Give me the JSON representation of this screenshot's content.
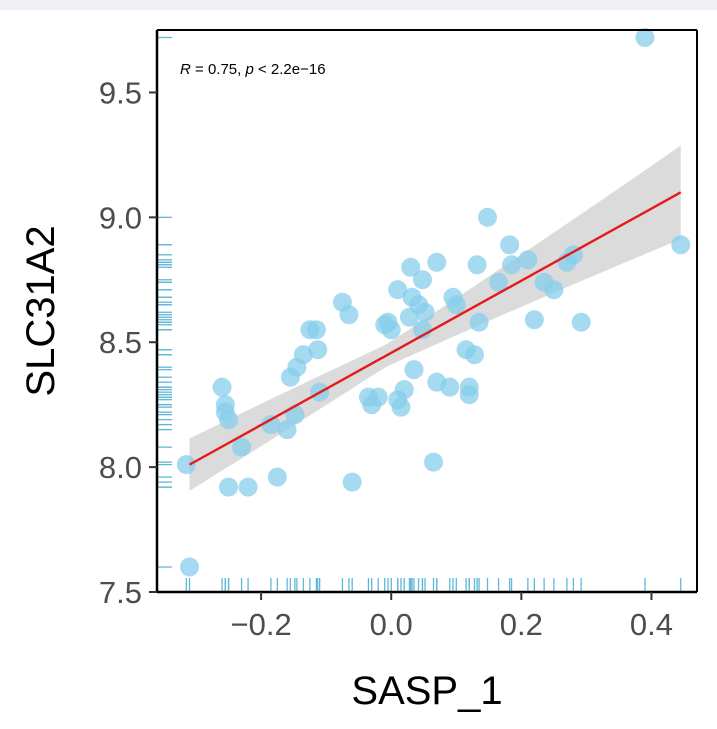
{
  "chart_data": {
    "type": "scatter",
    "xlabel": "SASP_1",
    "ylabel": "SLC31A2",
    "xlim": [
      -0.36,
      0.47
    ],
    "ylim": [
      7.5,
      9.75
    ],
    "x_ticks": [
      -0.2,
      0.0,
      0.2,
      0.4
    ],
    "x_tick_labels": [
      "−0.2",
      "0.0",
      "0.2",
      "0.4"
    ],
    "y_ticks": [
      7.5,
      8.0,
      8.5,
      9.0,
      9.5
    ],
    "y_tick_labels": [
      "7.5",
      "8.0",
      "8.5",
      "9.0",
      "9.5"
    ],
    "annotation": {
      "r_symbol": "R",
      "r_text": " = 0.75, ",
      "p_symbol": "p",
      "p_text": " < 2.2e−16"
    },
    "regression": {
      "x": [
        -0.31,
        0.445
      ],
      "y": [
        8.01,
        9.1
      ],
      "ci_lower": [
        7.9,
        8.97
      ],
      "ci_upper": [
        8.12,
        9.25
      ],
      "color": "#e41a1c",
      "band_color": "#bdbdbd"
    },
    "point_color": "#87ceeb",
    "rug_color": "#5fb8d8",
    "grid": false,
    "legend": "none",
    "series": [
      {
        "points": [
          [
            -0.31,
            7.6
          ],
          [
            -0.315,
            8.01
          ],
          [
            -0.26,
            8.32
          ],
          [
            -0.255,
            8.25
          ],
          [
            -0.255,
            8.22
          ],
          [
            -0.25,
            8.19
          ],
          [
            -0.25,
            7.92
          ],
          [
            -0.23,
            8.08
          ],
          [
            -0.22,
            7.92
          ],
          [
            -0.185,
            8.17
          ],
          [
            -0.175,
            7.96
          ],
          [
            -0.16,
            8.15
          ],
          [
            -0.155,
            8.36
          ],
          [
            -0.148,
            8.21
          ],
          [
            -0.145,
            8.4
          ],
          [
            -0.135,
            8.45
          ],
          [
            -0.125,
            8.55
          ],
          [
            -0.115,
            8.55
          ],
          [
            -0.113,
            8.47
          ],
          [
            -0.11,
            8.3
          ],
          [
            -0.075,
            8.66
          ],
          [
            -0.065,
            8.61
          ],
          [
            -0.06,
            7.94
          ],
          [
            -0.035,
            8.28
          ],
          [
            -0.03,
            8.25
          ],
          [
            -0.02,
            8.28
          ],
          [
            -0.01,
            8.57
          ],
          [
            -0.005,
            8.58
          ],
          [
            0.0,
            8.55
          ],
          [
            0.01,
            8.71
          ],
          [
            0.01,
            8.27
          ],
          [
            0.015,
            8.24
          ],
          [
            0.02,
            8.31
          ],
          [
            0.028,
            8.6
          ],
          [
            0.03,
            8.8
          ],
          [
            0.032,
            8.68
          ],
          [
            0.035,
            8.39
          ],
          [
            0.042,
            8.65
          ],
          [
            0.048,
            8.75
          ],
          [
            0.048,
            8.55
          ],
          [
            0.052,
            8.62
          ],
          [
            0.065,
            8.02
          ],
          [
            0.07,
            8.82
          ],
          [
            0.07,
            8.34
          ],
          [
            0.09,
            8.32
          ],
          [
            0.095,
            8.68
          ],
          [
            0.1,
            8.65
          ],
          [
            0.115,
            8.47
          ],
          [
            0.12,
            8.29
          ],
          [
            0.12,
            8.32
          ],
          [
            0.128,
            8.45
          ],
          [
            0.132,
            8.81
          ],
          [
            0.135,
            8.58
          ],
          [
            0.148,
            9.0
          ],
          [
            0.165,
            8.74
          ],
          [
            0.182,
            8.89
          ],
          [
            0.185,
            8.81
          ],
          [
            0.21,
            8.83
          ],
          [
            0.22,
            8.59
          ],
          [
            0.235,
            8.74
          ],
          [
            0.25,
            8.71
          ],
          [
            0.27,
            8.82
          ],
          [
            0.28,
            8.85
          ],
          [
            0.292,
            8.58
          ],
          [
            0.39,
            9.72
          ],
          [
            0.445,
            8.89
          ]
        ]
      }
    ]
  }
}
